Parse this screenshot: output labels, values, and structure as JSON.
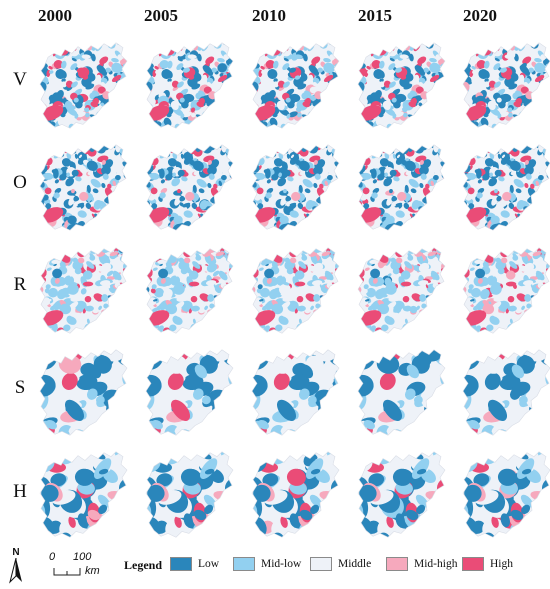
{
  "years": [
    "2000",
    "2005",
    "2010",
    "2015",
    "2020"
  ],
  "rows": [
    {
      "label": "V",
      "mix": [
        0.34,
        0.28,
        0.14,
        0.1,
        0.14
      ],
      "style": "fine"
    },
    {
      "label": "O",
      "mix": [
        0.44,
        0.22,
        0.1,
        0.08,
        0.16
      ],
      "style": "fine"
    },
    {
      "label": "R",
      "mix": [
        0.04,
        0.46,
        0.22,
        0.16,
        0.12
      ],
      "style": "fine"
    },
    {
      "label": "S",
      "mix": [
        0.36,
        0.3,
        0.18,
        0.1,
        0.06
      ],
      "style": "blob"
    },
    {
      "label": "H",
      "mix": [
        0.44,
        0.18,
        0.16,
        0.14,
        0.08
      ],
      "style": "blob"
    }
  ],
  "legend": {
    "title": "Legend",
    "items": [
      {
        "label": "Low",
        "color": "#2a86bb"
      },
      {
        "label": "Mid-low",
        "color": "#92d0f0"
      },
      {
        "label": "Middle",
        "color": "#eef2f8"
      },
      {
        "label": "Mid-high",
        "color": "#f6a9bd"
      },
      {
        "label": "High",
        "color": "#ea4c77"
      }
    ]
  },
  "north_arrow": {
    "letter": "N"
  },
  "scale_bar": {
    "start": "0",
    "end": "100",
    "unit": "km"
  }
}
